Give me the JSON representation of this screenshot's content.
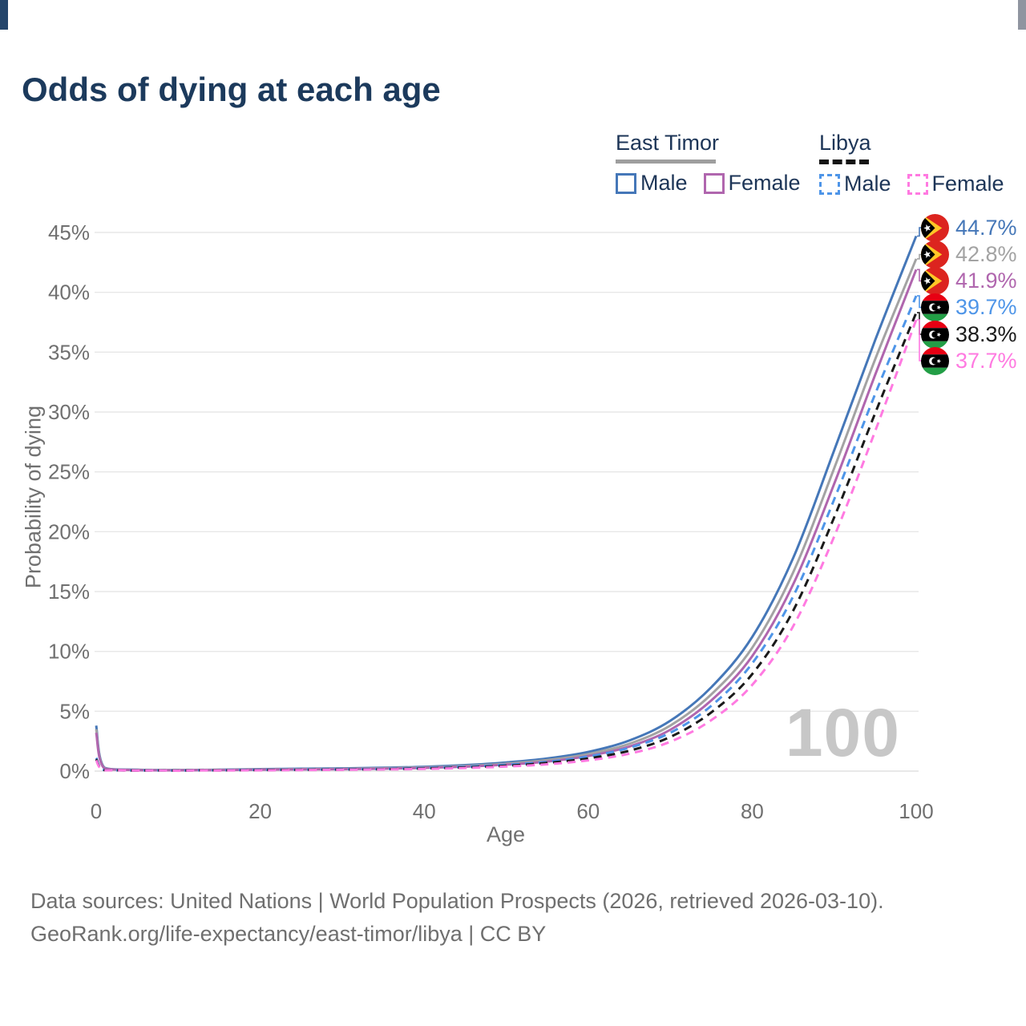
{
  "title": "Odds of dying at each age",
  "legend": {
    "groups": [
      {
        "country": "East Timor",
        "line_style": "solid",
        "rule_color": "#9e9e9e",
        "items": [
          {
            "label": "Male",
            "color": "#4577b8",
            "dashed": false
          },
          {
            "label": "Female",
            "color": "#b066ae",
            "dashed": false
          }
        ]
      },
      {
        "country": "Libya",
        "line_style": "dashed",
        "rule_color": "#141414",
        "items": [
          {
            "label": "Male",
            "color": "#4e95e8",
            "dashed": true
          },
          {
            "label": "Female",
            "color": "#ff7ae1",
            "dashed": true
          }
        ]
      }
    ]
  },
  "chart_data": {
    "type": "line",
    "title": "Odds of dying at each age",
    "xlabel": "Age",
    "ylabel": "Probability of dying",
    "xlim": [
      0,
      100
    ],
    "ylim": [
      0,
      45
    ],
    "xticks": [
      0,
      20,
      40,
      60,
      80,
      100
    ],
    "yticks": [
      0,
      5,
      10,
      15,
      20,
      25,
      30,
      35,
      40,
      45
    ],
    "ytick_suffix": "%",
    "grid": "horizontal",
    "legend_position": "top-right",
    "watermark": "100",
    "ages": [
      0,
      1,
      5,
      10,
      15,
      20,
      25,
      30,
      35,
      40,
      45,
      50,
      55,
      60,
      65,
      70,
      75,
      80,
      85,
      90,
      95,
      100
    ],
    "series": [
      {
        "name": "East Timor Male",
        "color": "#4577b8",
        "dashed": false,
        "values": [
          3.8,
          0.28,
          0.12,
          0.09,
          0.12,
          0.17,
          0.2,
          0.23,
          0.28,
          0.36,
          0.5,
          0.72,
          1.05,
          1.6,
          2.55,
          4.2,
          7.0,
          11.2,
          17.8,
          26.8,
          36.0,
          44.7
        ]
      },
      {
        "name": "East Timor Both sexes",
        "color": "#a3a3a3",
        "dashed": false,
        "values": [
          3.5,
          0.25,
          0.1,
          0.08,
          0.1,
          0.14,
          0.17,
          0.19,
          0.24,
          0.31,
          0.43,
          0.62,
          0.92,
          1.42,
          2.28,
          3.8,
          6.4,
          10.3,
          16.6,
          25.3,
          34.4,
          42.8
        ]
      },
      {
        "name": "East Timor Female",
        "color": "#b066ae",
        "dashed": false,
        "values": [
          3.2,
          0.22,
          0.09,
          0.07,
          0.09,
          0.12,
          0.14,
          0.16,
          0.2,
          0.27,
          0.37,
          0.54,
          0.8,
          1.26,
          2.05,
          3.45,
          5.9,
          9.6,
          15.6,
          24.0,
          33.1,
          41.9
        ]
      },
      {
        "name": "Libya Male",
        "color": "#4e95e8",
        "dashed": true,
        "values": [
          1.1,
          0.09,
          0.05,
          0.04,
          0.07,
          0.11,
          0.13,
          0.15,
          0.19,
          0.26,
          0.37,
          0.53,
          0.78,
          1.22,
          1.95,
          3.2,
          5.45,
          9.0,
          14.6,
          22.7,
          31.5,
          39.7
        ]
      },
      {
        "name": "Libya Both sexes",
        "color": "#1a1a1a",
        "dashed": true,
        "values": [
          1.0,
          0.08,
          0.04,
          0.04,
          0.06,
          0.09,
          0.11,
          0.13,
          0.16,
          0.22,
          0.31,
          0.45,
          0.68,
          1.06,
          1.7,
          2.85,
          4.9,
          8.1,
          13.4,
          21.2,
          29.9,
          38.3
        ]
      },
      {
        "name": "Libya Female",
        "color": "#ff7ae1",
        "dashed": true,
        "values": [
          0.9,
          0.07,
          0.04,
          0.03,
          0.05,
          0.07,
          0.09,
          0.11,
          0.14,
          0.18,
          0.26,
          0.38,
          0.57,
          0.9,
          1.45,
          2.45,
          4.25,
          7.2,
          12.1,
          19.6,
          28.4,
          37.7
        ]
      }
    ]
  },
  "end_labels": [
    {
      "series": "East Timor Male",
      "value": "44.7%",
      "color": "#4577b8",
      "flag": "east-timor"
    },
    {
      "series": "East Timor Both sexes",
      "value": "42.8%",
      "color": "#a3a3a3",
      "flag": "east-timor"
    },
    {
      "series": "East Timor Female",
      "value": "41.9%",
      "color": "#b066ae",
      "flag": "east-timor"
    },
    {
      "series": "Libya Male",
      "value": "39.7%",
      "color": "#4e95e8",
      "flag": "libya"
    },
    {
      "series": "Libya Both sexes",
      "value": "38.3%",
      "color": "#1a1a1a",
      "flag": "libya"
    },
    {
      "series": "Libya Female",
      "value": "37.7%",
      "color": "#ff7ae1",
      "flag": "libya"
    }
  ],
  "footer": {
    "line1": "Data sources: United Nations | World Population Prospects (2026, retrieved 2026-03-10).",
    "line2": "GeoRank.org/life-expectancy/east-timor/libya | CC BY"
  }
}
